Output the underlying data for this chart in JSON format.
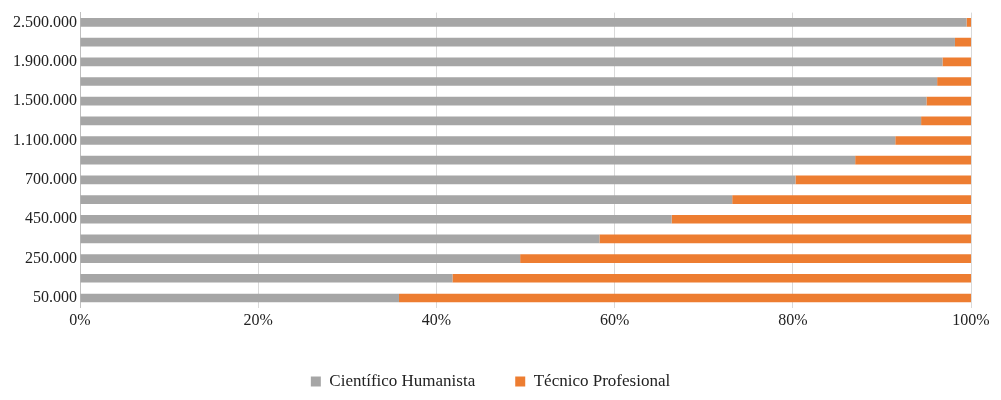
{
  "chart_data": {
    "type": "bar",
    "orientation": "horizontal",
    "stacked": true,
    "categories": [
      "2.500.000",
      null,
      "1.900.000",
      null,
      "1.500.000",
      null,
      "1.100.000",
      null,
      "700.000",
      null,
      "450.000",
      null,
      "250.000",
      null,
      "50.000"
    ],
    "series": [
      {
        "name": "Científico Humanista",
        "color": "#a6a6a6",
        "values": [
          99.5,
          98.2,
          96.8,
          96.2,
          95,
          94.4,
          91.5,
          87,
          80.3,
          73.2,
          66.4,
          58.3,
          49.4,
          41.8,
          35.8
        ]
      },
      {
        "name": "Técnico Profesional",
        "color": "#ed7d31",
        "values": [
          0.5,
          1.8,
          3.2,
          3.8,
          5,
          5.6,
          8.5,
          13,
          19.7,
          26.8,
          33.6,
          41.7,
          50.6,
          58.2,
          64.2
        ]
      }
    ],
    "xlim": [
      0,
      100
    ],
    "xticks": [
      {
        "value": 0,
        "label": "0%"
      },
      {
        "value": 20,
        "label": "20%"
      },
      {
        "value": 40,
        "label": "40%"
      },
      {
        "value": 60,
        "label": "60%"
      },
      {
        "value": 80,
        "label": "80%"
      },
      {
        "value": 100,
        "label": "100%"
      }
    ],
    "grid": "x",
    "legend": "bottom"
  }
}
